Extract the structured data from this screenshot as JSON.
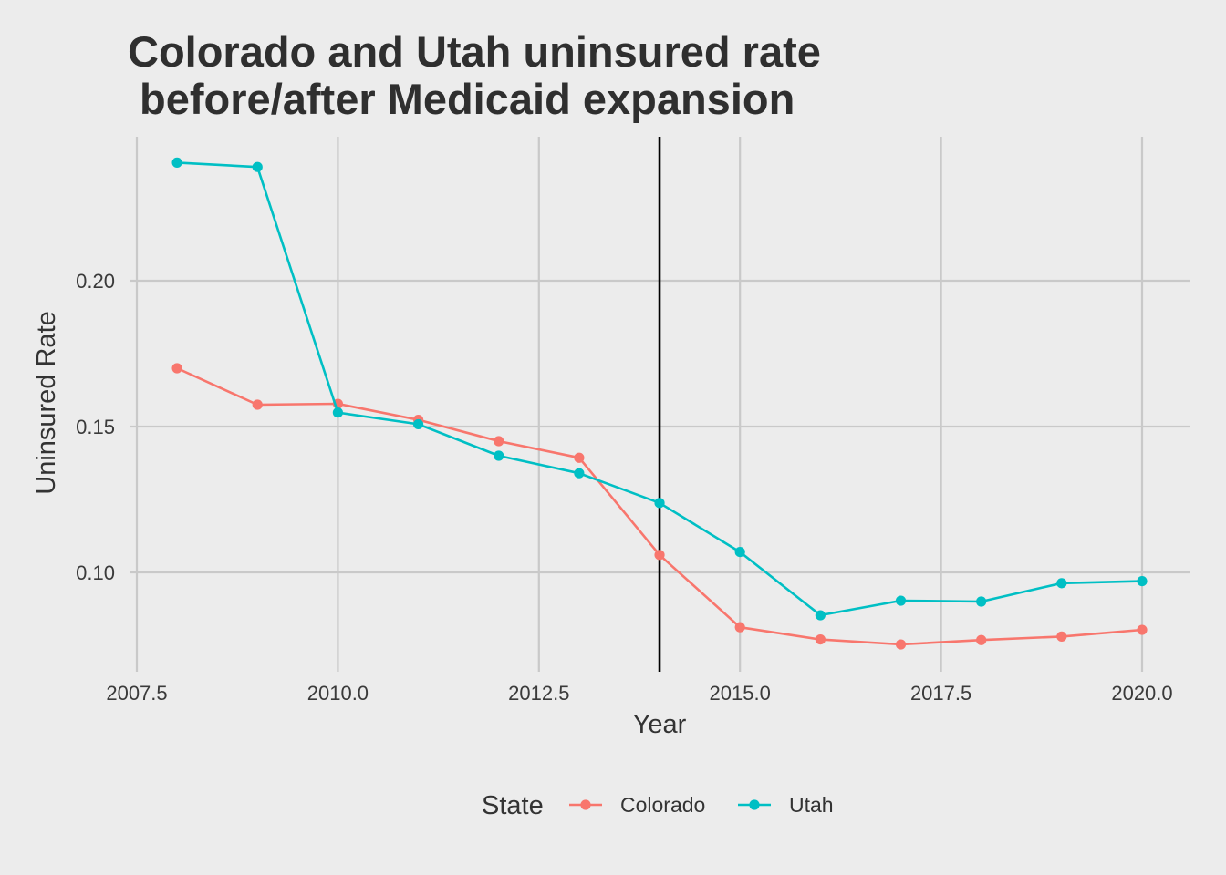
{
  "chart_data": {
    "type": "line",
    "title_line1": "Colorado and Utah uninsured rate",
    "title_line2": " before/after Medicaid expansion",
    "xlabel": "Year",
    "ylabel": "Uninsured Rate",
    "xlim": [
      2007.5,
      2020.5
    ],
    "ylim": [
      0.07,
      0.245
    ],
    "x_ticks": [
      2007.5,
      2010.0,
      2012.5,
      2015.0,
      2017.5,
      2020.0
    ],
    "x_tick_labels": [
      "2007.5",
      "2010.0",
      "2012.5",
      "2015.0",
      "2017.5",
      "2020.0"
    ],
    "y_ticks": [
      0.1,
      0.15,
      0.2
    ],
    "y_tick_labels": [
      "0.10",
      "0.15",
      "0.20"
    ],
    "vline_x": 2014,
    "grid": true,
    "x": [
      2008,
      2009,
      2010,
      2011,
      2012,
      2013,
      2014,
      2015,
      2016,
      2017,
      2018,
      2019,
      2020
    ],
    "series": [
      {
        "name": "Colorado",
        "color": "#F8766D",
        "values": [
          0.17,
          0.1575,
          0.1578,
          0.1523,
          0.145,
          0.1393,
          0.106,
          0.0812,
          0.077,
          0.0753,
          0.0768,
          0.078,
          0.0803
        ]
      },
      {
        "name": "Utah",
        "color": "#00BFC4",
        "values": [
          0.2405,
          0.239,
          0.1548,
          0.1508,
          0.14,
          0.134,
          0.1238,
          0.107,
          0.0853,
          0.0903,
          0.09,
          0.0963,
          0.097
        ]
      }
    ],
    "legend_title": "State",
    "legend_position": "bottom"
  }
}
